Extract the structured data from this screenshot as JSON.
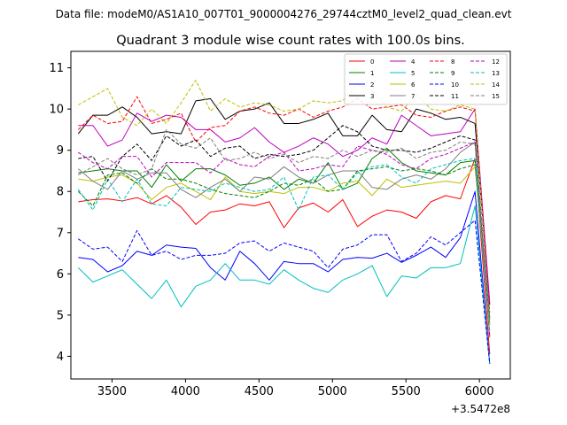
{
  "suptitle": "Data file: modeM0/AS1A10_007T01_9000004276_29744cztM0_level2_quad_clean.evt",
  "chart_data": {
    "type": "line",
    "title": "Quadrant 3 module wise count rates with 100.0s bins.",
    "xlabel": "",
    "ylabel": "",
    "x_offset_label": "+3.5472e8",
    "xlim": [
      3220,
      6210
    ],
    "ylim": [
      3.45,
      11.4
    ],
    "x_ticks": [
      3500,
      4000,
      4500,
      5000,
      5500,
      6000
    ],
    "x_tick_labels": [
      "3500",
      "4000",
      "4500",
      "5000",
      "5500",
      "6000"
    ],
    "y_ticks": [
      4,
      5,
      6,
      7,
      8,
      9,
      10,
      11
    ],
    "y_tick_labels": [
      "4",
      "5",
      "6",
      "7",
      "8",
      "9",
      "10",
      "11"
    ],
    "grid": false,
    "legend_position": "top-right",
    "x": [
      3270,
      3370,
      3470,
      3570,
      3670,
      3770,
      3870,
      3970,
      4070,
      4170,
      4270,
      4370,
      4470,
      4570,
      4670,
      4770,
      4870,
      4970,
      5070,
      5170,
      5270,
      5370,
      5470,
      5570,
      5670,
      5770,
      5870,
      5970,
      6070
    ],
    "series": [
      {
        "name": "0",
        "color": "#ff0000",
        "dash": "solid",
        "values": [
          7.75,
          7.8,
          7.82,
          7.77,
          7.85,
          7.7,
          7.9,
          7.62,
          7.2,
          7.5,
          7.55,
          7.7,
          7.65,
          7.75,
          7.12,
          7.6,
          7.72,
          7.5,
          7.8,
          7.15,
          7.4,
          7.55,
          7.5,
          7.35,
          7.75,
          7.9,
          7.82,
          8.8,
          4.05
        ]
      },
      {
        "name": "1",
        "color": "#008000",
        "dash": "solid",
        "values": [
          8.45,
          8.5,
          8.55,
          8.5,
          8.5,
          8.1,
          8.65,
          8.25,
          8.55,
          8.55,
          8.4,
          8.15,
          8.2,
          8.35,
          8.05,
          8.3,
          8.2,
          8.7,
          8.05,
          8.2,
          8.8,
          9.05,
          8.7,
          8.5,
          8.45,
          8.4,
          8.7,
          8.75,
          4.9
        ]
      },
      {
        "name": "2",
        "color": "#0000ff",
        "dash": "solid",
        "values": [
          6.4,
          6.35,
          6.05,
          6.2,
          6.55,
          6.45,
          6.7,
          6.65,
          6.62,
          6.15,
          5.85,
          6.55,
          6.25,
          5.85,
          6.3,
          6.25,
          6.25,
          6.05,
          6.35,
          6.4,
          6.38,
          6.5,
          6.28,
          6.45,
          6.65,
          6.4,
          6.88,
          8.0,
          3.82
        ]
      },
      {
        "name": "3",
        "color": "#000000",
        "dash": "solid",
        "values": [
          9.4,
          9.85,
          9.85,
          10.05,
          9.8,
          9.4,
          9.45,
          9.4,
          10.2,
          10.25,
          9.75,
          9.95,
          10.0,
          10.15,
          9.65,
          9.65,
          9.75,
          9.9,
          9.35,
          9.35,
          9.85,
          9.5,
          9.45,
          10.0,
          9.9,
          9.75,
          9.8,
          9.65,
          5.25
        ]
      },
      {
        "name": "4",
        "color": "#bf00bf",
        "dash": "solid",
        "values": [
          9.6,
          9.6,
          9.1,
          9.25,
          9.9,
          9.7,
          9.85,
          9.8,
          9.5,
          9.5,
          9.2,
          9.3,
          9.55,
          9.2,
          8.95,
          9.1,
          9.3,
          9.15,
          8.85,
          9.0,
          9.3,
          9.15,
          9.85,
          9.6,
          9.35,
          9.4,
          9.45,
          10.0,
          5.3
        ]
      },
      {
        "name": "5",
        "color": "#00bfbf",
        "dash": "solid",
        "values": [
          6.15,
          5.8,
          5.95,
          6.1,
          5.75,
          5.4,
          5.85,
          5.2,
          5.7,
          5.85,
          6.25,
          5.85,
          5.85,
          5.75,
          6.1,
          5.85,
          5.65,
          5.55,
          5.85,
          6.0,
          6.2,
          5.45,
          5.95,
          5.9,
          6.15,
          6.15,
          6.25,
          7.65,
          3.82
        ]
      },
      {
        "name": "6",
        "color": "#bfbf00",
        "dash": "solid",
        "values": [
          8.3,
          8.25,
          8.35,
          8.4,
          8.2,
          7.8,
          8.1,
          8.2,
          8.0,
          7.8,
          8.35,
          8.0,
          7.95,
          8.0,
          7.95,
          8.1,
          8.1,
          8.0,
          8.2,
          8.25,
          7.9,
          8.3,
          8.1,
          8.15,
          8.2,
          8.25,
          8.2,
          8.6,
          4.8
        ]
      },
      {
        "name": "7",
        "color": "#7f7f7f",
        "dash": "solid",
        "values": [
          8.55,
          8.25,
          8.05,
          8.5,
          8.3,
          8.45,
          8.45,
          8.05,
          7.85,
          8.1,
          8.3,
          8.0,
          8.35,
          8.3,
          8.6,
          8.35,
          8.2,
          8.4,
          8.5,
          8.5,
          8.1,
          8.05,
          8.3,
          8.4,
          8.3,
          8.55,
          8.95,
          9.2,
          4.45
        ]
      },
      {
        "name": "8",
        "color": "#ff0000",
        "dash": "dashed",
        "values": [
          9.5,
          9.85,
          9.65,
          9.7,
          10.3,
          9.65,
          9.75,
          9.9,
          9.2,
          9.55,
          9.6,
          9.95,
          10.05,
          9.9,
          9.85,
          10.0,
          9.8,
          9.95,
          10.05,
          10.25,
          10.0,
          10.05,
          10.1,
          9.85,
          9.8,
          9.95,
          10.05,
          9.95,
          5.05
        ]
      },
      {
        "name": "9",
        "color": "#008000",
        "dash": "dashed",
        "values": [
          8.0,
          7.65,
          8.4,
          8.45,
          8.2,
          8.55,
          8.3,
          8.3,
          8.2,
          8.05,
          7.95,
          7.9,
          7.85,
          8.0,
          8.2,
          8.15,
          8.3,
          8.0,
          8.05,
          8.5,
          8.55,
          8.6,
          8.5,
          8.55,
          8.5,
          8.4,
          8.55,
          8.65,
          4.95
        ]
      },
      {
        "name": "10",
        "color": "#0000ff",
        "dash": "dashed",
        "values": [
          6.85,
          6.6,
          6.65,
          6.3,
          7.05,
          6.45,
          6.55,
          6.35,
          6.45,
          6.45,
          6.5,
          6.75,
          6.8,
          6.55,
          6.75,
          6.65,
          6.55,
          6.15,
          6.6,
          6.7,
          6.95,
          6.95,
          6.3,
          6.5,
          6.9,
          6.7,
          7.0,
          7.3,
          3.82
        ]
      },
      {
        "name": "11",
        "color": "#000000",
        "dash": "dashed",
        "values": [
          8.8,
          8.85,
          8.25,
          8.85,
          9.15,
          8.75,
          9.35,
          9.1,
          9.25,
          8.85,
          9.05,
          9.1,
          8.8,
          8.9,
          8.85,
          8.9,
          9.0,
          9.3,
          9.6,
          9.45,
          9.1,
          9.0,
          9.0,
          8.95,
          9.05,
          9.2,
          9.35,
          9.25,
          4.8
        ]
      },
      {
        "name": "12",
        "color": "#bf00bf",
        "dash": "dashed",
        "values": [
          8.95,
          8.7,
          8.55,
          8.85,
          8.85,
          8.35,
          8.7,
          8.7,
          8.7,
          8.45,
          8.8,
          8.65,
          8.6,
          8.85,
          8.95,
          8.5,
          8.55,
          8.65,
          8.6,
          9.1,
          9.0,
          8.9,
          8.65,
          8.55,
          8.8,
          8.9,
          9.05,
          9.2,
          4.5
        ]
      },
      {
        "name": "13",
        "color": "#00bfbf",
        "dash": "dashed",
        "values": [
          8.05,
          7.55,
          8.3,
          7.75,
          8.3,
          7.7,
          7.65,
          8.1,
          8.05,
          8.0,
          8.2,
          8.1,
          8.0,
          8.05,
          8.35,
          7.55,
          8.35,
          8.4,
          8.05,
          8.45,
          8.6,
          8.65,
          8.35,
          8.2,
          8.55,
          8.65,
          8.75,
          8.8,
          4.6
        ]
      },
      {
        "name": "14",
        "color": "#bfbf00",
        "dash": "dashed",
        "values": [
          10.1,
          10.3,
          10.5,
          9.8,
          9.6,
          10.0,
          9.65,
          10.15,
          10.7,
          9.95,
          10.25,
          10.05,
          10.15,
          10.1,
          9.95,
          10.0,
          10.2,
          10.15,
          10.2,
          10.6,
          10.45,
          10.05,
          9.95,
          10.35,
          10.0,
          9.95,
          10.1,
          10.0,
          4.75
        ]
      },
      {
        "name": "15",
        "color": "#7f7f7f",
        "dash": "dashed",
        "values": [
          8.4,
          8.6,
          8.8,
          8.55,
          8.4,
          8.55,
          9.5,
          9.15,
          9.05,
          9.3,
          8.75,
          8.8,
          8.95,
          8.8,
          8.9,
          8.7,
          8.85,
          8.8,
          9.0,
          8.85,
          9.0,
          8.95,
          9.05,
          8.8,
          8.95,
          9.0,
          9.2,
          9.15,
          4.9
        ]
      }
    ]
  }
}
